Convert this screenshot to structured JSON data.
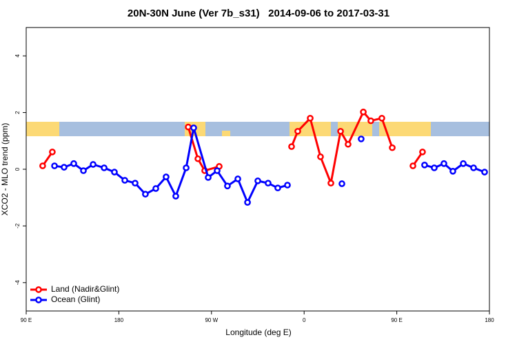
{
  "chart_data": {
    "type": "line",
    "title": "20N-30N June (Ver 7b_s31)   2014-09-06 to 2017-03-31",
    "xlabel": "Longitude (deg E)",
    "ylabel": "XCO2 - MLO trend (ppm)",
    "xlim": [
      90,
      540
    ],
    "ylim": [
      -5,
      5
    ],
    "xticks": [
      {
        "value": 90,
        "label": "90 E"
      },
      180,
      {
        "value": 270,
        "label": "90 W"
      },
      {
        "value": 360,
        "label": "0"
      },
      {
        "value": 450,
        "label": "90 E"
      },
      {
        "value": 540,
        "label": "180"
      }
    ],
    "yticks": [
      -4,
      -2,
      0,
      2,
      4
    ],
    "legend": "bottomleft",
    "series": [
      {
        "name": "Land (Nadir&Glint)",
        "color": "#ff0000",
        "x": [
          106,
          115.4,
          null,
          247.4,
          256.8,
          263.4,
          277.5,
          null,
          347.8,
          353.8,
          365.9,
          375.9,
          386,
          395.4,
          402.7,
          417.5,
          424.8,
          435.5,
          445.6,
          null,
          465.7,
          475
        ],
        "values": [
          0.12,
          0.61,
          null,
          1.49,
          0.37,
          -0.05,
          0.1,
          null,
          0.8,
          1.34,
          1.8,
          0.44,
          -0.49,
          1.34,
          0.88,
          2.02,
          1.71,
          1.8,
          0.76,
          null,
          0.12,
          0.61
        ]
      },
      {
        "name": "Ocean (Glint)",
        "color": "#0000ff",
        "x": [
          117.5,
          126.8,
          136.2,
          145.6,
          155,
          165.7,
          175.7,
          185.8,
          195.8,
          205.8,
          215.9,
          225.9,
          235.3,
          245.4,
          252.7,
          266.8,
          275.5,
          285.5,
          295.6,
          305,
          315,
          325,
          334.4,
          343.8,
          null,
          396.7,
          null,
          415.4,
          null,
          477,
          486.4,
          495.8,
          504.5,
          514.6,
          524.6,
          535.3
        ],
        "values": [
          0.12,
          0.07,
          0.2,
          -0.05,
          0.17,
          0.05,
          -0.1,
          -0.39,
          -0.49,
          -0.88,
          -0.68,
          -0.27,
          -0.95,
          0.05,
          1.46,
          -0.29,
          -0.05,
          -0.59,
          -0.34,
          -1.17,
          -0.41,
          -0.49,
          -0.66,
          -0.56,
          null,
          -0.51,
          null,
          1.07,
          null,
          0.15,
          0.05,
          0.2,
          -0.07,
          0.2,
          0.05,
          -0.1
        ]
      }
    ]
  }
}
